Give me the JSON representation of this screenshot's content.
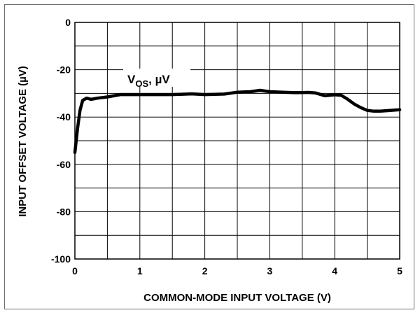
{
  "chart_data": {
    "type": "line",
    "title": "",
    "xlabel": "COMMON-MODE INPUT VOLTAGE (V)",
    "ylabel": "INPUT OFFSET VOLTAGE (µV)",
    "xlim": [
      0,
      5
    ],
    "ylim": [
      -100,
      0
    ],
    "xticks": [
      0,
      1,
      2,
      3,
      4,
      5
    ],
    "yticks": [
      0,
      -20,
      -40,
      -60,
      -80,
      -100
    ],
    "grid": true,
    "line_color": "#000000",
    "grid_color": "#000000",
    "annotation": {
      "main": "V",
      "sub": "OS",
      "rest": ", µV"
    },
    "series": [
      {
        "x": [
          0.0,
          0.04,
          0.08,
          0.12,
          0.18,
          0.25,
          0.35,
          0.5,
          0.7,
          0.9,
          1.2,
          1.5,
          1.8,
          2.0,
          2.3,
          2.5,
          2.7,
          2.85,
          3.0,
          3.2,
          3.4,
          3.6,
          3.7,
          3.85,
          4.0,
          4.1,
          4.2,
          4.3,
          4.4,
          4.5,
          4.6,
          4.7,
          4.8,
          5.0
        ],
        "y": [
          -55,
          -45,
          -37,
          -33,
          -32,
          -32.5,
          -32,
          -31.5,
          -30.5,
          -30.5,
          -30.5,
          -30.5,
          -30.2,
          -30.5,
          -30.3,
          -29.5,
          -29.3,
          -28.7,
          -29.3,
          -29.5,
          -29.7,
          -29.6,
          -29.8,
          -31,
          -30.6,
          -30.8,
          -32.5,
          -34.5,
          -36,
          -37.2,
          -37.5,
          -37.5,
          -37.3,
          -36.9
        ]
      }
    ]
  }
}
